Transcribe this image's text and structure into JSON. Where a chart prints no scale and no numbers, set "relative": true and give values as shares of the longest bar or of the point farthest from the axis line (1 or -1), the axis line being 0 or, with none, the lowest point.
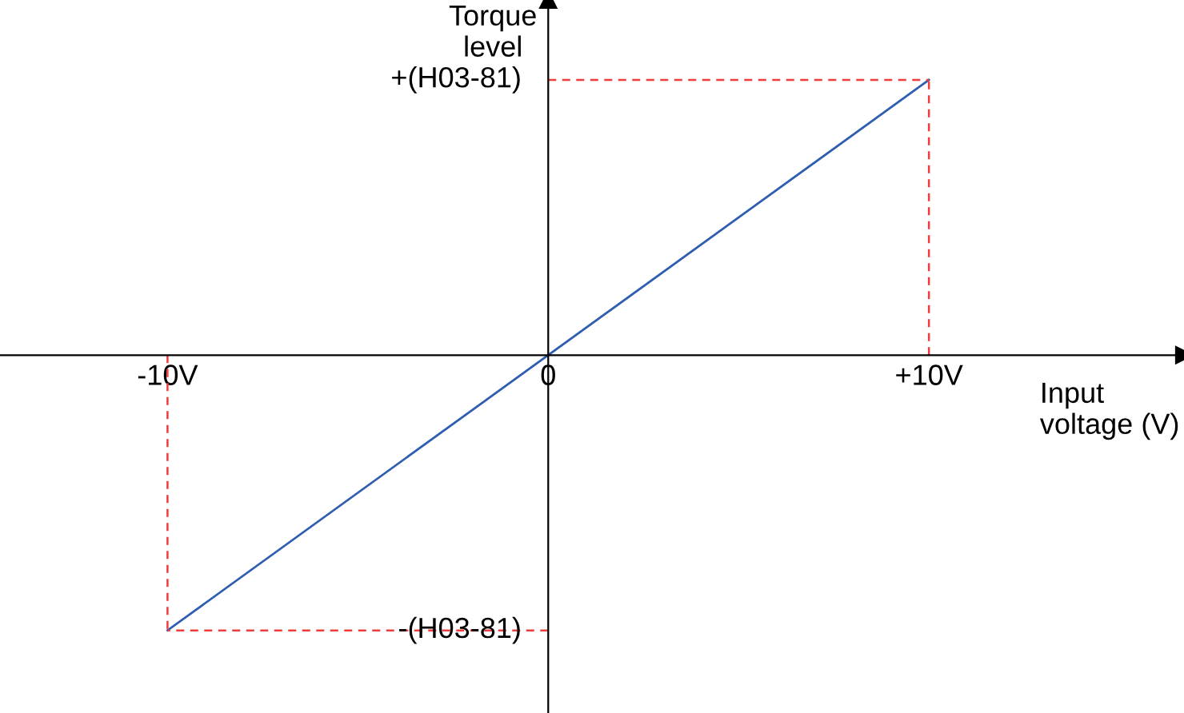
{
  "chart_data": {
    "type": "line",
    "xlabel": "Input\nvoltage (V)",
    "ylabel": "Torque\nlevel",
    "relative": true,
    "x": [
      -10,
      10
    ],
    "series": [
      {
        "color": "#2f5eb0",
        "values": [
          -1,
          1
        ]
      }
    ],
    "xlim": [
      -14.4,
      16.7
    ],
    "xticks": [
      {
        "value": -10,
        "label": "-10V"
      },
      {
        "value": 0,
        "label": "0"
      },
      {
        "value": 10,
        "label": "+10V"
      }
    ],
    "annotations": [
      "+(H03-81)",
      "-(H03-81)"
    ],
    "ref_lines": [
      {
        "axis": "x",
        "value": -10,
        "color": "#f03c3c",
        "line_style": "dashed"
      },
      {
        "axis": "x",
        "value": 10,
        "color": "#f03c3c",
        "line_style": "dashed"
      }
    ],
    "marker": "none",
    "line_style": "solid"
  }
}
